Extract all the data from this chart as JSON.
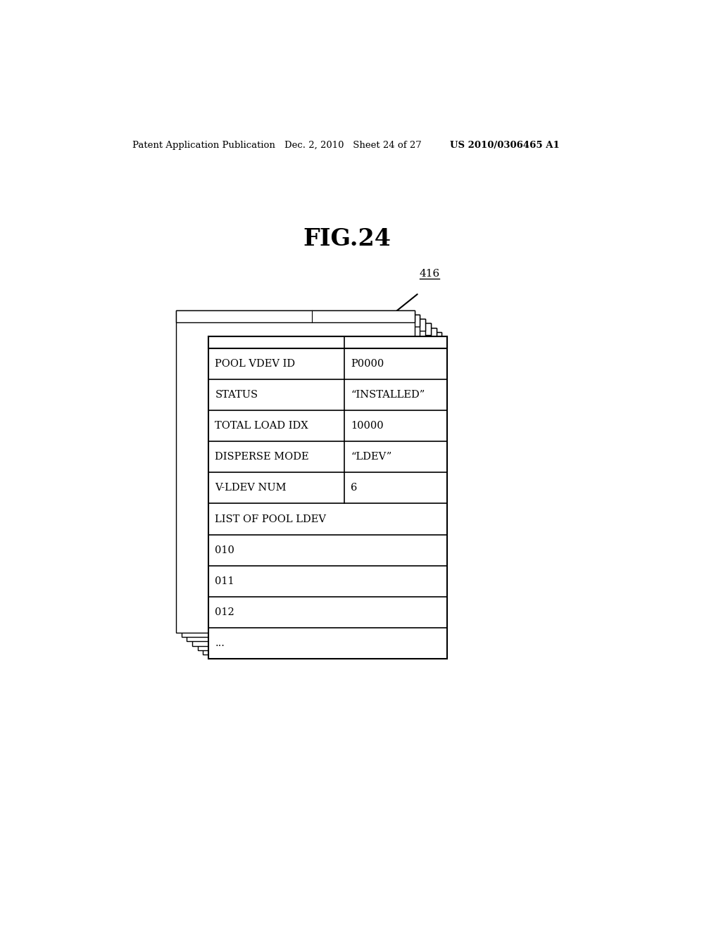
{
  "bg_color": "#ffffff",
  "header_text_left": "Patent Application Publication",
  "header_text_mid": "Dec. 2, 2010   Sheet 24 of 27",
  "header_text_right": "US 2010/0306465 A1",
  "fig_title": "FIG.24",
  "ref_number": "416",
  "table_rows": [
    {
      "label": "POOL VDEV ID",
      "value": "P0000",
      "has_value_col": true
    },
    {
      "label": "STATUS",
      "value": "“INSTALLED”",
      "has_value_col": true
    },
    {
      "label": "TOTAL LOAD IDX",
      "value": "10000",
      "has_value_col": true
    },
    {
      "label": "DISPERSE MODE",
      "value": "“LDEV”",
      "has_value_col": true
    },
    {
      "label": "V-LDEV NUM",
      "value": "6",
      "has_value_col": true
    },
    {
      "label": "LIST OF POOL LDEV",
      "value": "",
      "has_value_col": false
    },
    {
      "label": "010",
      "value": "",
      "has_value_col": false
    },
    {
      "label": "011",
      "value": "",
      "has_value_col": false
    },
    {
      "label": "012",
      "value": "",
      "has_value_col": false
    },
    {
      "label": "...",
      "value": "",
      "has_value_col": false
    }
  ],
  "num_stacked": 6,
  "font_size_header": 9.5,
  "font_size_title": 24,
  "font_size_ref": 11,
  "font_size_table": 10.5
}
